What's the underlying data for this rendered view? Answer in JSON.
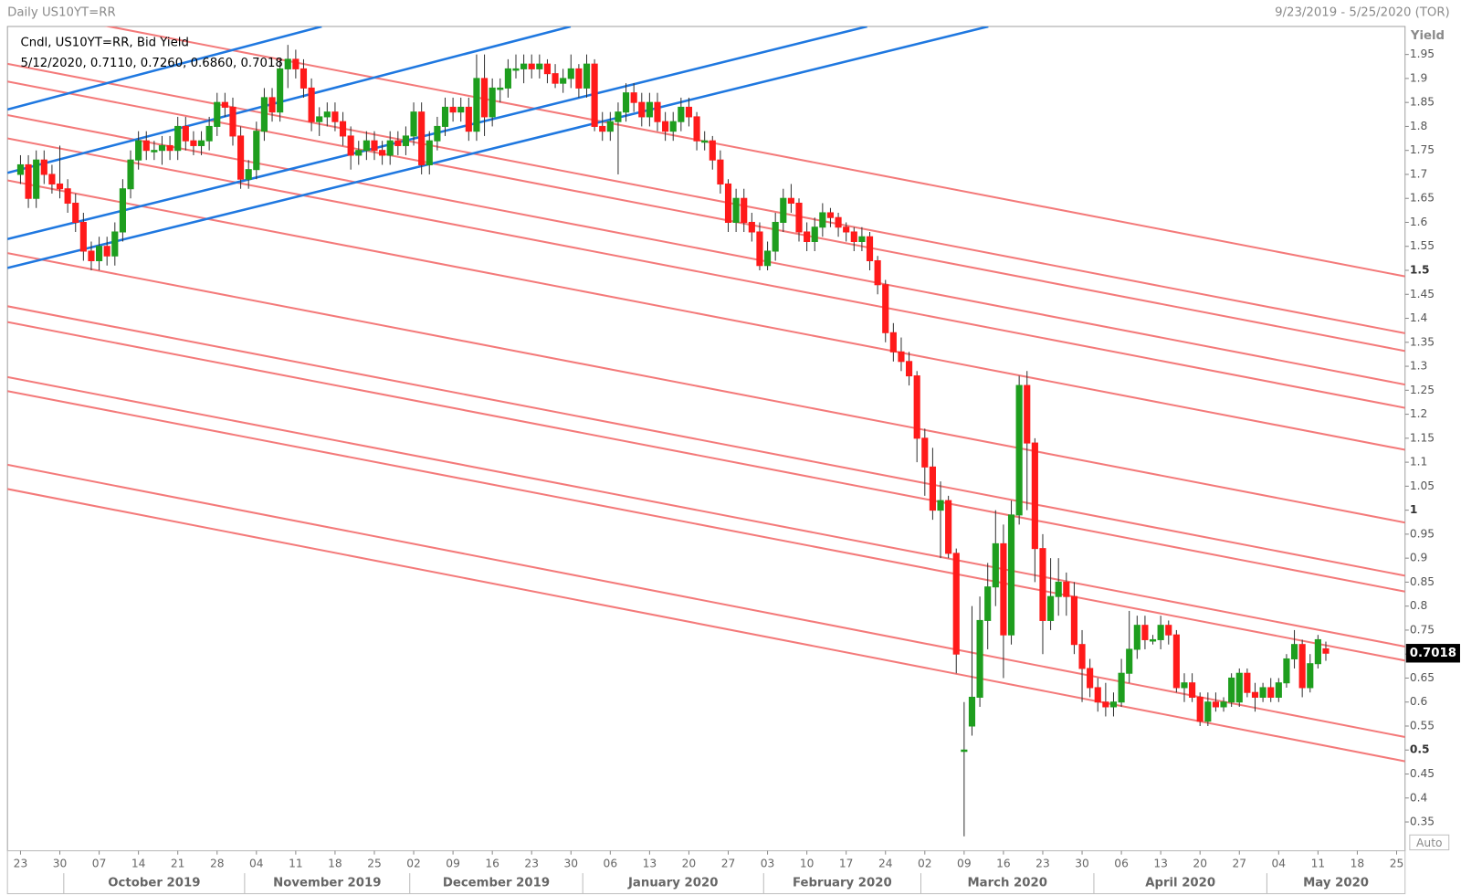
{
  "chart_data": {
    "type": "candlestick",
    "title": "Daily US10YT=RR",
    "date_range": "9/23/2019 - 5/25/2020 (TOR)",
    "y_label": "Yield",
    "legend_lines": [
      "Cndl, US10YT=RR, Bid Yield",
      "5/12/2020, 0.7110, 0.7260, 0.6860, 0.7018"
    ],
    "auto_label": "Auto",
    "up_color": "#1e9e1e",
    "down_color": "#ff1a1a",
    "ylim": [
      0.3,
      2.0
    ],
    "yticks": [
      0.35,
      0.4,
      0.45,
      0.5,
      0.55,
      0.6,
      0.65,
      0.7,
      0.75,
      0.8,
      0.85,
      0.9,
      0.95,
      1,
      1.05,
      1.1,
      1.15,
      1.2,
      1.25,
      1.3,
      1.35,
      1.4,
      1.45,
      1.5,
      1.55,
      1.6,
      1.65,
      1.7,
      1.75,
      1.8,
      1.85,
      1.9,
      1.95
    ],
    "xticks": [
      {
        "value": "2019-09-23",
        "label": "23"
      },
      {
        "value": "2019-09-30",
        "label": "30"
      },
      {
        "value": "2019-10-07",
        "label": "07"
      },
      {
        "value": "2019-10-14",
        "label": "14"
      },
      {
        "value": "2019-10-21",
        "label": "21"
      },
      {
        "value": "2019-10-28",
        "label": "28"
      },
      {
        "value": "2019-11-04",
        "label": "04"
      },
      {
        "value": "2019-11-11",
        "label": "11"
      },
      {
        "value": "2019-11-18",
        "label": "18"
      },
      {
        "value": "2019-11-25",
        "label": "25"
      },
      {
        "value": "2019-12-02",
        "label": "02"
      },
      {
        "value": "2019-12-09",
        "label": "09"
      },
      {
        "value": "2019-12-16",
        "label": "16"
      },
      {
        "value": "2019-12-23",
        "label": "23"
      },
      {
        "value": "2019-12-30",
        "label": "30"
      },
      {
        "value": "2020-01-06",
        "label": "06"
      },
      {
        "value": "2020-01-13",
        "label": "13"
      },
      {
        "value": "2020-01-20",
        "label": "20"
      },
      {
        "value": "2020-01-27",
        "label": "27"
      },
      {
        "value": "2020-02-03",
        "label": "03"
      },
      {
        "value": "2020-02-10",
        "label": "10"
      },
      {
        "value": "2020-02-17",
        "label": "17"
      },
      {
        "value": "2020-02-24",
        "label": "24"
      },
      {
        "value": "2020-03-02",
        "label": "02"
      },
      {
        "value": "2020-03-09",
        "label": "09"
      },
      {
        "value": "2020-03-16",
        "label": "16"
      },
      {
        "value": "2020-03-23",
        "label": "23"
      },
      {
        "value": "2020-03-30",
        "label": "30"
      },
      {
        "value": "2020-04-06",
        "label": "06"
      },
      {
        "value": "2020-04-13",
        "label": "13"
      },
      {
        "value": "2020-04-20",
        "label": "20"
      },
      {
        "value": "2020-04-27",
        "label": "27"
      },
      {
        "value": "2020-05-04",
        "label": "04"
      },
      {
        "value": "2020-05-11",
        "label": "11"
      },
      {
        "value": "2020-05-18",
        "label": "18"
      },
      {
        "value": "2020-05-25",
        "label": "25"
      }
    ],
    "month_labels": [
      "October 2019",
      "November 2019",
      "December 2019",
      "January 2020",
      "February 2020",
      "March 2020",
      "April 2020",
      "May 2020"
    ],
    "x": [
      "2019-09-23",
      "2019-09-24",
      "2019-09-25",
      "2019-09-26",
      "2019-09-27",
      "2019-09-30",
      "2019-10-01",
      "2019-10-02",
      "2019-10-03",
      "2019-10-04",
      "2019-10-07",
      "2019-10-08",
      "2019-10-09",
      "2019-10-10",
      "2019-10-11",
      "2019-10-14",
      "2019-10-15",
      "2019-10-16",
      "2019-10-17",
      "2019-10-18",
      "2019-10-21",
      "2019-10-22",
      "2019-10-23",
      "2019-10-24",
      "2019-10-25",
      "2019-10-28",
      "2019-10-29",
      "2019-10-30",
      "2019-10-31",
      "2019-11-01",
      "2019-11-04",
      "2019-11-05",
      "2019-11-06",
      "2019-11-07",
      "2019-11-08",
      "2019-11-11",
      "2019-11-12",
      "2019-11-13",
      "2019-11-14",
      "2019-11-15",
      "2019-11-18",
      "2019-11-19",
      "2019-11-20",
      "2019-11-21",
      "2019-11-22",
      "2019-11-25",
      "2019-11-26",
      "2019-11-27",
      "2019-11-28",
      "2019-11-29",
      "2019-12-02",
      "2019-12-03",
      "2019-12-04",
      "2019-12-05",
      "2019-12-06",
      "2019-12-09",
      "2019-12-10",
      "2019-12-11",
      "2019-12-12",
      "2019-12-13",
      "2019-12-16",
      "2019-12-17",
      "2019-12-18",
      "2019-12-19",
      "2019-12-20",
      "2019-12-23",
      "2019-12-24",
      "2019-12-25",
      "2019-12-26",
      "2019-12-27",
      "2019-12-30",
      "2019-12-31",
      "2020-01-01",
      "2020-01-02",
      "2020-01-03",
      "2020-01-06",
      "2020-01-07",
      "2020-01-08",
      "2020-01-09",
      "2020-01-10",
      "2020-01-13",
      "2020-01-14",
      "2020-01-15",
      "2020-01-16",
      "2020-01-17",
      "2020-01-20",
      "2020-01-21",
      "2020-01-22",
      "2020-01-23",
      "2020-01-24",
      "2020-01-27",
      "2020-01-28",
      "2020-01-29",
      "2020-01-30",
      "2020-01-31",
      "2020-02-03",
      "2020-02-04",
      "2020-02-05",
      "2020-02-06",
      "2020-02-07",
      "2020-02-10",
      "2020-02-11",
      "2020-02-12",
      "2020-02-13",
      "2020-02-14",
      "2020-02-17",
      "2020-02-18",
      "2020-02-19",
      "2020-02-20",
      "2020-02-21",
      "2020-02-24",
      "2020-02-25",
      "2020-02-26",
      "2020-02-27",
      "2020-02-28",
      "2020-03-02",
      "2020-03-03",
      "2020-03-04",
      "2020-03-05",
      "2020-03-06",
      "2020-03-09",
      "2020-03-10",
      "2020-03-11",
      "2020-03-12",
      "2020-03-13",
      "2020-03-16",
      "2020-03-17",
      "2020-03-18",
      "2020-03-19",
      "2020-03-20",
      "2020-03-23",
      "2020-03-24",
      "2020-03-25",
      "2020-03-26",
      "2020-03-27",
      "2020-03-30",
      "2020-03-31",
      "2020-04-01",
      "2020-04-02",
      "2020-04-03",
      "2020-04-06",
      "2020-04-07",
      "2020-04-08",
      "2020-04-09",
      "2020-04-10",
      "2020-04-13",
      "2020-04-14",
      "2020-04-15",
      "2020-04-16",
      "2020-04-17",
      "2020-04-20",
      "2020-04-21",
      "2020-04-22",
      "2020-04-23",
      "2020-04-24",
      "2020-04-27",
      "2020-04-28",
      "2020-04-29",
      "2020-04-30",
      "2020-05-01",
      "2020-05-04",
      "2020-05-05",
      "2020-05-06",
      "2020-05-07",
      "2020-05-08",
      "2020-05-11",
      "2020-05-12"
    ],
    "ohlc": [
      [
        1.7,
        1.74,
        1.68,
        1.72
      ],
      [
        1.72,
        1.74,
        1.63,
        1.65
      ],
      [
        1.65,
        1.75,
        1.63,
        1.73
      ],
      [
        1.73,
        1.75,
        1.68,
        1.7
      ],
      [
        1.7,
        1.72,
        1.66,
        1.68
      ],
      [
        1.68,
        1.76,
        1.65,
        1.67
      ],
      [
        1.67,
        1.69,
        1.62,
        1.64
      ],
      [
        1.64,
        1.66,
        1.58,
        1.6
      ],
      [
        1.6,
        1.62,
        1.52,
        1.54
      ],
      [
        1.54,
        1.56,
        1.5,
        1.52
      ],
      [
        1.52,
        1.57,
        1.5,
        1.55
      ],
      [
        1.55,
        1.57,
        1.51,
        1.53
      ],
      [
        1.53,
        1.6,
        1.51,
        1.58
      ],
      [
        1.58,
        1.69,
        1.56,
        1.67
      ],
      [
        1.67,
        1.75,
        1.65,
        1.73
      ],
      [
        1.73,
        1.79,
        1.71,
        1.77
      ],
      [
        1.77,
        1.79,
        1.73,
        1.75
      ],
      [
        1.75,
        1.77,
        1.73,
        1.75
      ],
      [
        1.75,
        1.78,
        1.72,
        1.76
      ],
      [
        1.76,
        1.78,
        1.73,
        1.75
      ],
      [
        1.75,
        1.82,
        1.73,
        1.8
      ],
      [
        1.8,
        1.82,
        1.75,
        1.77
      ],
      [
        1.77,
        1.79,
        1.74,
        1.76
      ],
      [
        1.76,
        1.79,
        1.74,
        1.77
      ],
      [
        1.77,
        1.82,
        1.75,
        1.8
      ],
      [
        1.8,
        1.87,
        1.78,
        1.85
      ],
      [
        1.85,
        1.87,
        1.82,
        1.84
      ],
      [
        1.84,
        1.86,
        1.76,
        1.78
      ],
      [
        1.78,
        1.8,
        1.67,
        1.69
      ],
      [
        1.69,
        1.73,
        1.67,
        1.71
      ],
      [
        1.71,
        1.81,
        1.69,
        1.79
      ],
      [
        1.79,
        1.88,
        1.77,
        1.86
      ],
      [
        1.86,
        1.88,
        1.81,
        1.83
      ],
      [
        1.83,
        1.94,
        1.81,
        1.92
      ],
      [
        1.92,
        1.97,
        1.88,
        1.94
      ],
      [
        1.94,
        1.96,
        1.9,
        1.92
      ],
      [
        1.92,
        1.94,
        1.86,
        1.88
      ],
      [
        1.88,
        1.9,
        1.79,
        1.81
      ],
      [
        1.81,
        1.84,
        1.78,
        1.82
      ],
      [
        1.82,
        1.85,
        1.8,
        1.83
      ],
      [
        1.83,
        1.85,
        1.79,
        1.81
      ],
      [
        1.81,
        1.83,
        1.76,
        1.78
      ],
      [
        1.78,
        1.8,
        1.71,
        1.74
      ],
      [
        1.74,
        1.77,
        1.72,
        1.75
      ],
      [
        1.75,
        1.79,
        1.73,
        1.77
      ],
      [
        1.77,
        1.79,
        1.73,
        1.75
      ],
      [
        1.75,
        1.77,
        1.72,
        1.74
      ],
      [
        1.74,
        1.79,
        1.72,
        1.77
      ],
      [
        1.77,
        1.79,
        1.74,
        1.76
      ],
      [
        1.76,
        1.8,
        1.74,
        1.78
      ],
      [
        1.78,
        1.85,
        1.76,
        1.83
      ],
      [
        1.83,
        1.85,
        1.7,
        1.72
      ],
      [
        1.72,
        1.79,
        1.7,
        1.77
      ],
      [
        1.77,
        1.82,
        1.75,
        1.8
      ],
      [
        1.8,
        1.86,
        1.78,
        1.84
      ],
      [
        1.84,
        1.86,
        1.81,
        1.83
      ],
      [
        1.83,
        1.86,
        1.81,
        1.84
      ],
      [
        1.84,
        1.86,
        1.77,
        1.79
      ],
      [
        1.79,
        1.95,
        1.77,
        1.9
      ],
      [
        1.9,
        1.95,
        1.78,
        1.82
      ],
      [
        1.82,
        1.9,
        1.8,
        1.88
      ],
      [
        1.88,
        1.9,
        1.85,
        1.88
      ],
      [
        1.88,
        1.94,
        1.86,
        1.92
      ],
      [
        1.92,
        1.95,
        1.9,
        1.92
      ],
      [
        1.92,
        1.95,
        1.89,
        1.93
      ],
      [
        1.93,
        1.95,
        1.9,
        1.92
      ],
      [
        1.92,
        1.95,
        1.9,
        1.93
      ],
      [
        1.93,
        1.94,
        1.89,
        1.91
      ],
      [
        1.91,
        1.93,
        1.88,
        1.89
      ],
      [
        1.89,
        1.92,
        1.87,
        1.9
      ],
      [
        1.9,
        1.95,
        1.88,
        1.92
      ],
      [
        1.92,
        1.93,
        1.86,
        1.88
      ],
      [
        1.88,
        1.95,
        1.86,
        1.93
      ],
      [
        1.93,
        1.94,
        1.79,
        1.8
      ],
      [
        1.8,
        1.83,
        1.77,
        1.79
      ],
      [
        1.79,
        1.83,
        1.77,
        1.81
      ],
      [
        1.81,
        1.85,
        1.7,
        1.83
      ],
      [
        1.83,
        1.89,
        1.81,
        1.87
      ],
      [
        1.87,
        1.89,
        1.83,
        1.85
      ],
      [
        1.85,
        1.87,
        1.8,
        1.82
      ],
      [
        1.82,
        1.87,
        1.8,
        1.85
      ],
      [
        1.85,
        1.87,
        1.79,
        1.81
      ],
      [
        1.81,
        1.83,
        1.77,
        1.79
      ],
      [
        1.79,
        1.83,
        1.77,
        1.81
      ],
      [
        1.81,
        1.86,
        1.79,
        1.84
      ],
      [
        1.84,
        1.86,
        1.8,
        1.82
      ],
      [
        1.82,
        1.83,
        1.75,
        1.77
      ],
      [
        1.77,
        1.79,
        1.75,
        1.77
      ],
      [
        1.77,
        1.78,
        1.71,
        1.73
      ],
      [
        1.73,
        1.75,
        1.66,
        1.68
      ],
      [
        1.68,
        1.69,
        1.58,
        1.6
      ],
      [
        1.6,
        1.67,
        1.58,
        1.65
      ],
      [
        1.65,
        1.67,
        1.58,
        1.6
      ],
      [
        1.6,
        1.62,
        1.56,
        1.58
      ],
      [
        1.58,
        1.6,
        1.5,
        1.51
      ],
      [
        1.51,
        1.56,
        1.5,
        1.54
      ],
      [
        1.54,
        1.62,
        1.52,
        1.6
      ],
      [
        1.6,
        1.67,
        1.58,
        1.65
      ],
      [
        1.65,
        1.68,
        1.62,
        1.64
      ],
      [
        1.64,
        1.65,
        1.56,
        1.58
      ],
      [
        1.58,
        1.6,
        1.54,
        1.56
      ],
      [
        1.56,
        1.61,
        1.54,
        1.59
      ],
      [
        1.59,
        1.64,
        1.57,
        1.62
      ],
      [
        1.62,
        1.63,
        1.59,
        1.61
      ],
      [
        1.61,
        1.62,
        1.57,
        1.59
      ],
      [
        1.59,
        1.6,
        1.56,
        1.58
      ],
      [
        1.58,
        1.59,
        1.54,
        1.56
      ],
      [
        1.56,
        1.59,
        1.54,
        1.57
      ],
      [
        1.57,
        1.58,
        1.5,
        1.52
      ],
      [
        1.52,
        1.53,
        1.45,
        1.47
      ],
      [
        1.47,
        1.48,
        1.35,
        1.37
      ],
      [
        1.37,
        1.39,
        1.31,
        1.33
      ],
      [
        1.33,
        1.36,
        1.29,
        1.31
      ],
      [
        1.31,
        1.33,
        1.26,
        1.28
      ],
      [
        1.28,
        1.29,
        1.1,
        1.15
      ],
      [
        1.15,
        1.17,
        1.03,
        1.09
      ],
      [
        1.09,
        1.13,
        0.98,
        1.0
      ],
      [
        1.0,
        1.06,
        0.9,
        1.02
      ],
      [
        1.02,
        1.03,
        0.9,
        0.91
      ],
      [
        0.91,
        0.92,
        0.66,
        0.7
      ],
      [
        0.5,
        0.6,
        0.32,
        0.5
      ],
      [
        0.55,
        0.8,
        0.53,
        0.61
      ],
      [
        0.61,
        0.82,
        0.59,
        0.77
      ],
      [
        0.77,
        0.89,
        0.71,
        0.84
      ],
      [
        0.84,
        1.0,
        0.8,
        0.93
      ],
      [
        0.93,
        0.97,
        0.65,
        0.74
      ],
      [
        0.74,
        1.02,
        0.72,
        0.99
      ],
      [
        0.99,
        1.28,
        0.97,
        1.26
      ],
      [
        1.26,
        1.29,
        1.0,
        1.14
      ],
      [
        1.14,
        1.15,
        0.85,
        0.92
      ],
      [
        0.92,
        0.95,
        0.7,
        0.77
      ],
      [
        0.77,
        0.9,
        0.75,
        0.82
      ],
      [
        0.82,
        0.9,
        0.78,
        0.85
      ],
      [
        0.85,
        0.87,
        0.78,
        0.82
      ],
      [
        0.82,
        0.85,
        0.7,
        0.72
      ],
      [
        0.72,
        0.75,
        0.6,
        0.67
      ],
      [
        0.67,
        0.69,
        0.61,
        0.63
      ],
      [
        0.63,
        0.65,
        0.58,
        0.6
      ],
      [
        0.6,
        0.64,
        0.57,
        0.59
      ],
      [
        0.59,
        0.62,
        0.57,
        0.6
      ],
      [
        0.6,
        0.69,
        0.59,
        0.66
      ],
      [
        0.66,
        0.79,
        0.64,
        0.71
      ],
      [
        0.71,
        0.78,
        0.69,
        0.76
      ],
      [
        0.76,
        0.78,
        0.71,
        0.73
      ],
      [
        0.73,
        0.74,
        0.72,
        0.73
      ],
      [
        0.73,
        0.78,
        0.71,
        0.76
      ],
      [
        0.76,
        0.77,
        0.72,
        0.74
      ],
      [
        0.74,
        0.75,
        0.62,
        0.63
      ],
      [
        0.63,
        0.66,
        0.6,
        0.64
      ],
      [
        0.64,
        0.66,
        0.6,
        0.61
      ],
      [
        0.61,
        0.62,
        0.55,
        0.56
      ],
      [
        0.56,
        0.62,
        0.55,
        0.6
      ],
      [
        0.6,
        0.62,
        0.58,
        0.59
      ],
      [
        0.59,
        0.61,
        0.58,
        0.6
      ],
      [
        0.6,
        0.66,
        0.59,
        0.65
      ],
      [
        0.6,
        0.67,
        0.59,
        0.66
      ],
      [
        0.66,
        0.67,
        0.61,
        0.62
      ],
      [
        0.62,
        0.64,
        0.58,
        0.61
      ],
      [
        0.61,
        0.64,
        0.6,
        0.63
      ],
      [
        0.63,
        0.65,
        0.6,
        0.61
      ],
      [
        0.61,
        0.65,
        0.6,
        0.64
      ],
      [
        0.64,
        0.7,
        0.63,
        0.69
      ],
      [
        0.69,
        0.75,
        0.67,
        0.72
      ],
      [
        0.72,
        0.73,
        0.61,
        0.63
      ],
      [
        0.63,
        0.7,
        0.62,
        0.68
      ],
      [
        0.68,
        0.74,
        0.67,
        0.73
      ],
      [
        0.711,
        0.726,
        0.686,
        0.7018
      ]
    ]
  }
}
